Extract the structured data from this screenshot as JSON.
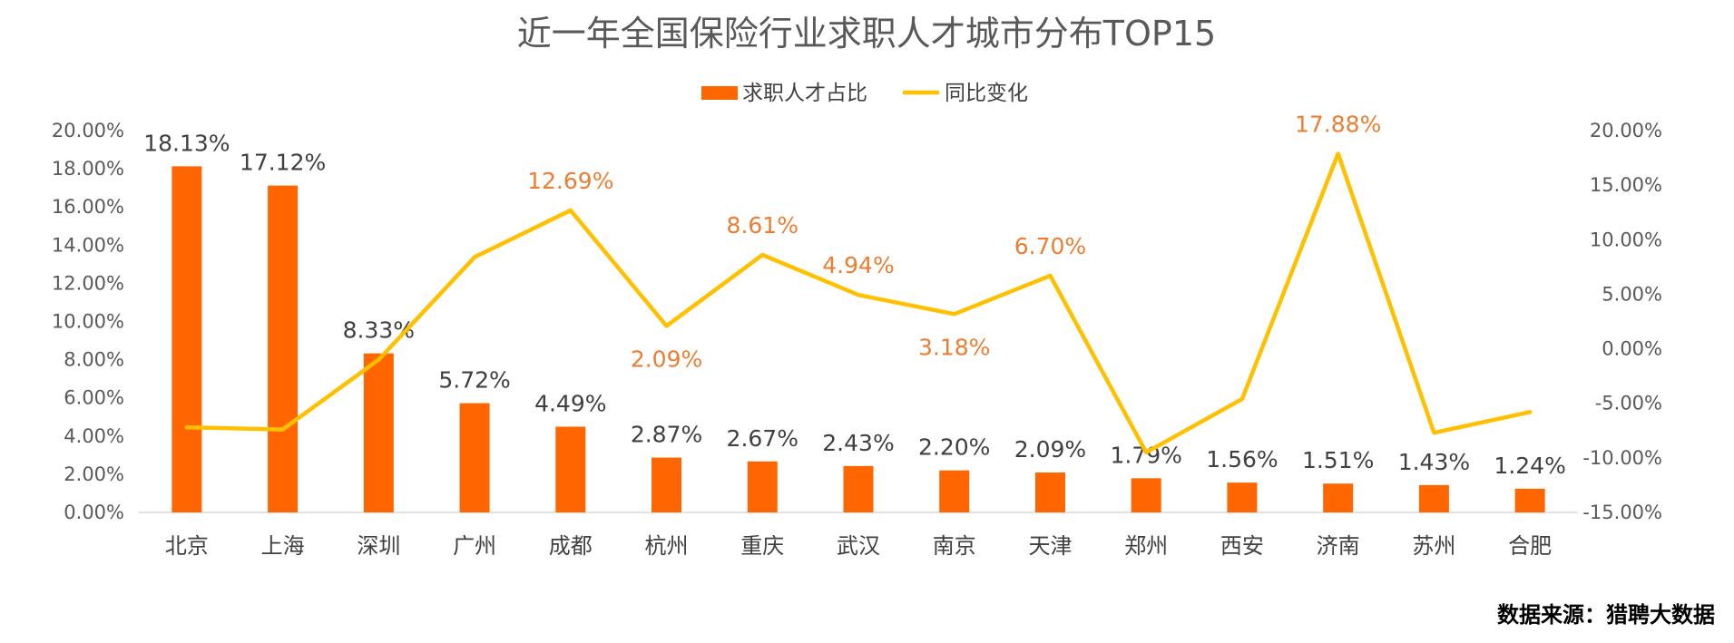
{
  "chart_data": {
    "type": "bar",
    "title": "近一年全国保险行业求职人才城市分布TOP15",
    "categories": [
      "北京",
      "上海",
      "深圳",
      "广州",
      "成都",
      "杭州",
      "重庆",
      "武汉",
      "南京",
      "天津",
      "郑州",
      "西安",
      "济南",
      "苏州",
      "合肥"
    ],
    "series": [
      {
        "name": "求职人才占比",
        "type": "bar",
        "axis": "left",
        "color": "#FF6600",
        "values": [
          18.13,
          17.12,
          8.33,
          5.72,
          4.49,
          2.87,
          2.67,
          2.43,
          2.2,
          2.09,
          1.79,
          1.56,
          1.51,
          1.43,
          1.24
        ],
        "labels": [
          "18.13%",
          "17.12%",
          "8.33%",
          "5.72%",
          "4.49%",
          "2.87%",
          "2.67%",
          "2.43%",
          "2.20%",
          "2.09%",
          "1.79%",
          "1.56%",
          "1.51%",
          "1.43%",
          "1.24%"
        ]
      },
      {
        "name": "同比变化",
        "type": "line",
        "axis": "right",
        "color": "#FFC000",
        "values": [
          -7.2,
          -7.4,
          -1.0,
          8.4,
          12.69,
          2.09,
          8.61,
          4.94,
          3.18,
          6.7,
          -9.5,
          -4.6,
          17.88,
          -7.7,
          -5.8
        ],
        "labels": [
          "",
          "",
          "",
          "",
          "12.69%",
          "2.09%",
          "8.61%",
          "4.94%",
          "3.18%",
          "6.70%",
          "",
          "",
          "17.88%",
          "",
          ""
        ]
      }
    ],
    "y_left": {
      "range": [
        0,
        20
      ],
      "ticks": [
        0,
        2,
        4,
        6,
        8,
        10,
        12,
        14,
        16,
        18,
        20
      ],
      "tick_labels": [
        "0.00%",
        "2.00%",
        "4.00%",
        "6.00%",
        "8.00%",
        "10.00%",
        "12.00%",
        "14.00%",
        "16.00%",
        "18.00%",
        "20.00%"
      ]
    },
    "y_right": {
      "range": [
        -15,
        20
      ],
      "ticks": [
        -15,
        -10,
        -5,
        0,
        5,
        10,
        15,
        20
      ],
      "tick_labels": [
        "-15.00%",
        "-10.00%",
        "-5.00%",
        "0.00%",
        "5.00%",
        "10.00%",
        "15.00%",
        "20.00%"
      ]
    },
    "grid": false,
    "legend_position": "top-center",
    "line_label_color": "#ED7D31",
    "source_note": "数据来源：猎聘大数据"
  }
}
